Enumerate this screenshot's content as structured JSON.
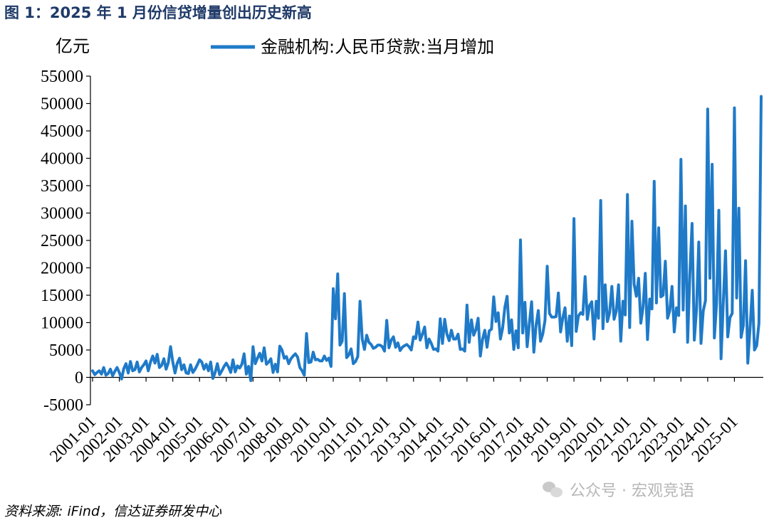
{
  "figure_title": "图 1：2025 年 1 月份信贷增量创出历史新高",
  "source_note": "资料来源: iFind，信达证券研发中心",
  "watermark": "公众号 · 宏观竞语",
  "chart_data": {
    "type": "line",
    "title": "",
    "unit_label": "亿元",
    "ylabel": "亿元",
    "xlabel": "",
    "ylim": [
      -5000,
      55000
    ],
    "y_ticks": [
      -5000,
      0,
      5000,
      10000,
      15000,
      20000,
      25000,
      30000,
      35000,
      40000,
      45000,
      50000,
      55000
    ],
    "x_tick_labels": [
      "2001-01",
      "2002-01",
      "2003-01",
      "2004-01",
      "2005-01",
      "2006-01",
      "2007-01",
      "2008-01",
      "2009-01",
      "2010-01",
      "2011-01",
      "2012-01",
      "2013-01",
      "2014-01",
      "2015-01",
      "2016-01",
      "2017-01",
      "2018-01",
      "2019-01",
      "2020-01",
      "2021-01",
      "2022-01",
      "2023-01",
      "2024-01",
      "2025-01"
    ],
    "legend_position": "top",
    "grid": false,
    "color": "#1f7ac8",
    "series": [
      {
        "name": "金融机构:人民币贷款:当月增加",
        "start": "2001-01",
        "frequency": "monthly",
        "values": [
          1200,
          500,
          900,
          1200,
          600,
          1800,
          400,
          700,
          1500,
          300,
          1100,
          1800,
          900,
          -300,
          1600,
          2500,
          800,
          2900,
          1200,
          1400,
          2800,
          1000,
          1800,
          2300,
          3000,
          1200,
          2800,
          3900,
          2600,
          4200,
          1800,
          2200,
          3400,
          1500,
          2700,
          5600,
          2800,
          800,
          2600,
          3500,
          1400,
          2300,
          800,
          700,
          2300,
          900,
          1500,
          2300,
          3200,
          2800,
          1500,
          2400,
          1200,
          2800,
          -200,
          900,
          2500,
          500,
          1200,
          2000,
          2600,
          1900,
          900,
          3200,
          1000,
          2100,
          1700,
          2400,
          4300,
          600,
          2000,
          -600,
          5600,
          2500,
          3500,
          4400,
          3000,
          5400,
          2400,
          2800,
          3400,
          900,
          2400,
          1000,
          5700,
          5000,
          3500,
          3800,
          2500,
          3400,
          3900,
          4300,
          3700,
          1800,
          1200,
          400,
          8000,
          2700,
          2800,
          4600,
          3200,
          3300,
          3000,
          3000,
          3900,
          3100,
          3500,
          2000,
          16200,
          10700,
          18900,
          5900,
          6600,
          15300,
          3600,
          4100,
          5200,
          2500,
          2900,
          3800,
          13900,
          7000,
          5100,
          7700,
          6400,
          6000,
          5300,
          5500,
          5900,
          5900,
          5600,
          4800,
          10400,
          5400,
          6800,
          7400,
          5500,
          6300,
          4900,
          5500,
          5800,
          6000,
          5600,
          5000,
          7400,
          7100,
          10100,
          6800,
          7900,
          9200,
          5400,
          7000,
          6200,
          5100,
          5200,
          4800,
          10700,
          6200,
          10600,
          7900,
          6700,
          8600,
          7000,
          7000,
          7900,
          5100,
          5200,
          4800,
          13200,
          6400,
          10500,
          7700,
          8700,
          10800,
          3900,
          7000,
          8600,
          5500,
          8500,
          8800,
          14700,
          10200,
          11800,
          7000,
          9000,
          12800,
          14800,
          8100,
          10500,
          5100,
          8500,
          5400,
          25100,
          8100,
          13700,
          5600,
          9900,
          13800,
          4600,
          9500,
          12200,
          6600,
          7900,
          10400,
          20300,
          11700,
          11000,
          11000,
          11100,
          15400,
          8300,
          10900,
          12700,
          6600,
          11200,
          5800,
          29000,
          8400,
          11200,
          11800,
          11500,
          18400,
          10600,
          13100,
          13800,
          7000,
          13900,
          10800,
          32300,
          8900,
          16900,
          10200,
          11800,
          16600,
          10600,
          12100,
          16900,
          6600,
          13900,
          11400,
          33400,
          9100,
          28500,
          17000,
          14800,
          18100,
          9900,
          12800,
          19000,
          6900,
          14300,
          12500,
          35800,
          13600,
          27300,
          14700,
          15000,
          21200,
          10800,
          12200,
          16600,
          8300,
          12700,
          11300,
          39800,
          12300,
          31300,
          6400,
          18900,
          28100,
          6800,
          12500,
          24700,
          6200,
          12100,
          14000,
          49000,
          18100,
          38900,
          7200,
          13600,
          30500,
          3400,
          13600,
          23100,
          7400,
          10900,
          11700,
          49200,
          14500,
          30900,
          7300,
          9500,
          21300,
          2600,
          9000,
          15900,
          5000,
          5800,
          9900,
          51300
        ]
      }
    ]
  }
}
